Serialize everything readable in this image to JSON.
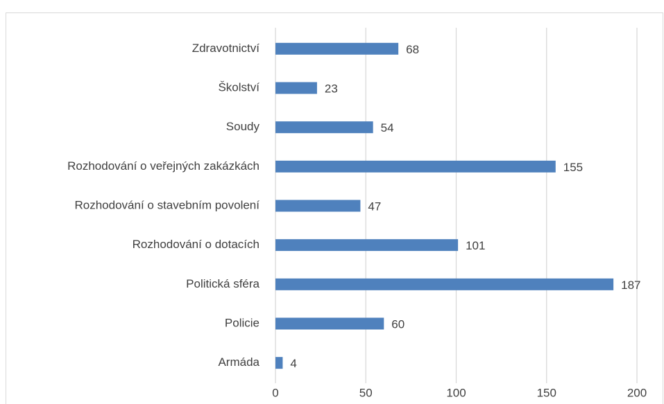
{
  "chart_data": {
    "type": "barh",
    "categories": [
      "Zdravotnictví",
      "Školství",
      "Soudy",
      "Rozhodování o veřejných zakázkách",
      "Rozhodování o stavebním povolení",
      "Rozhodování o dotacích",
      "Politická sféra",
      "Policie",
      "Armáda"
    ],
    "values": [
      68,
      23,
      54,
      155,
      47,
      101,
      187,
      60,
      4
    ],
    "color": "#4f81bd",
    "xlim": [
      0,
      200
    ],
    "xticks": [
      0,
      50,
      100,
      150,
      200
    ],
    "grid": true
  }
}
